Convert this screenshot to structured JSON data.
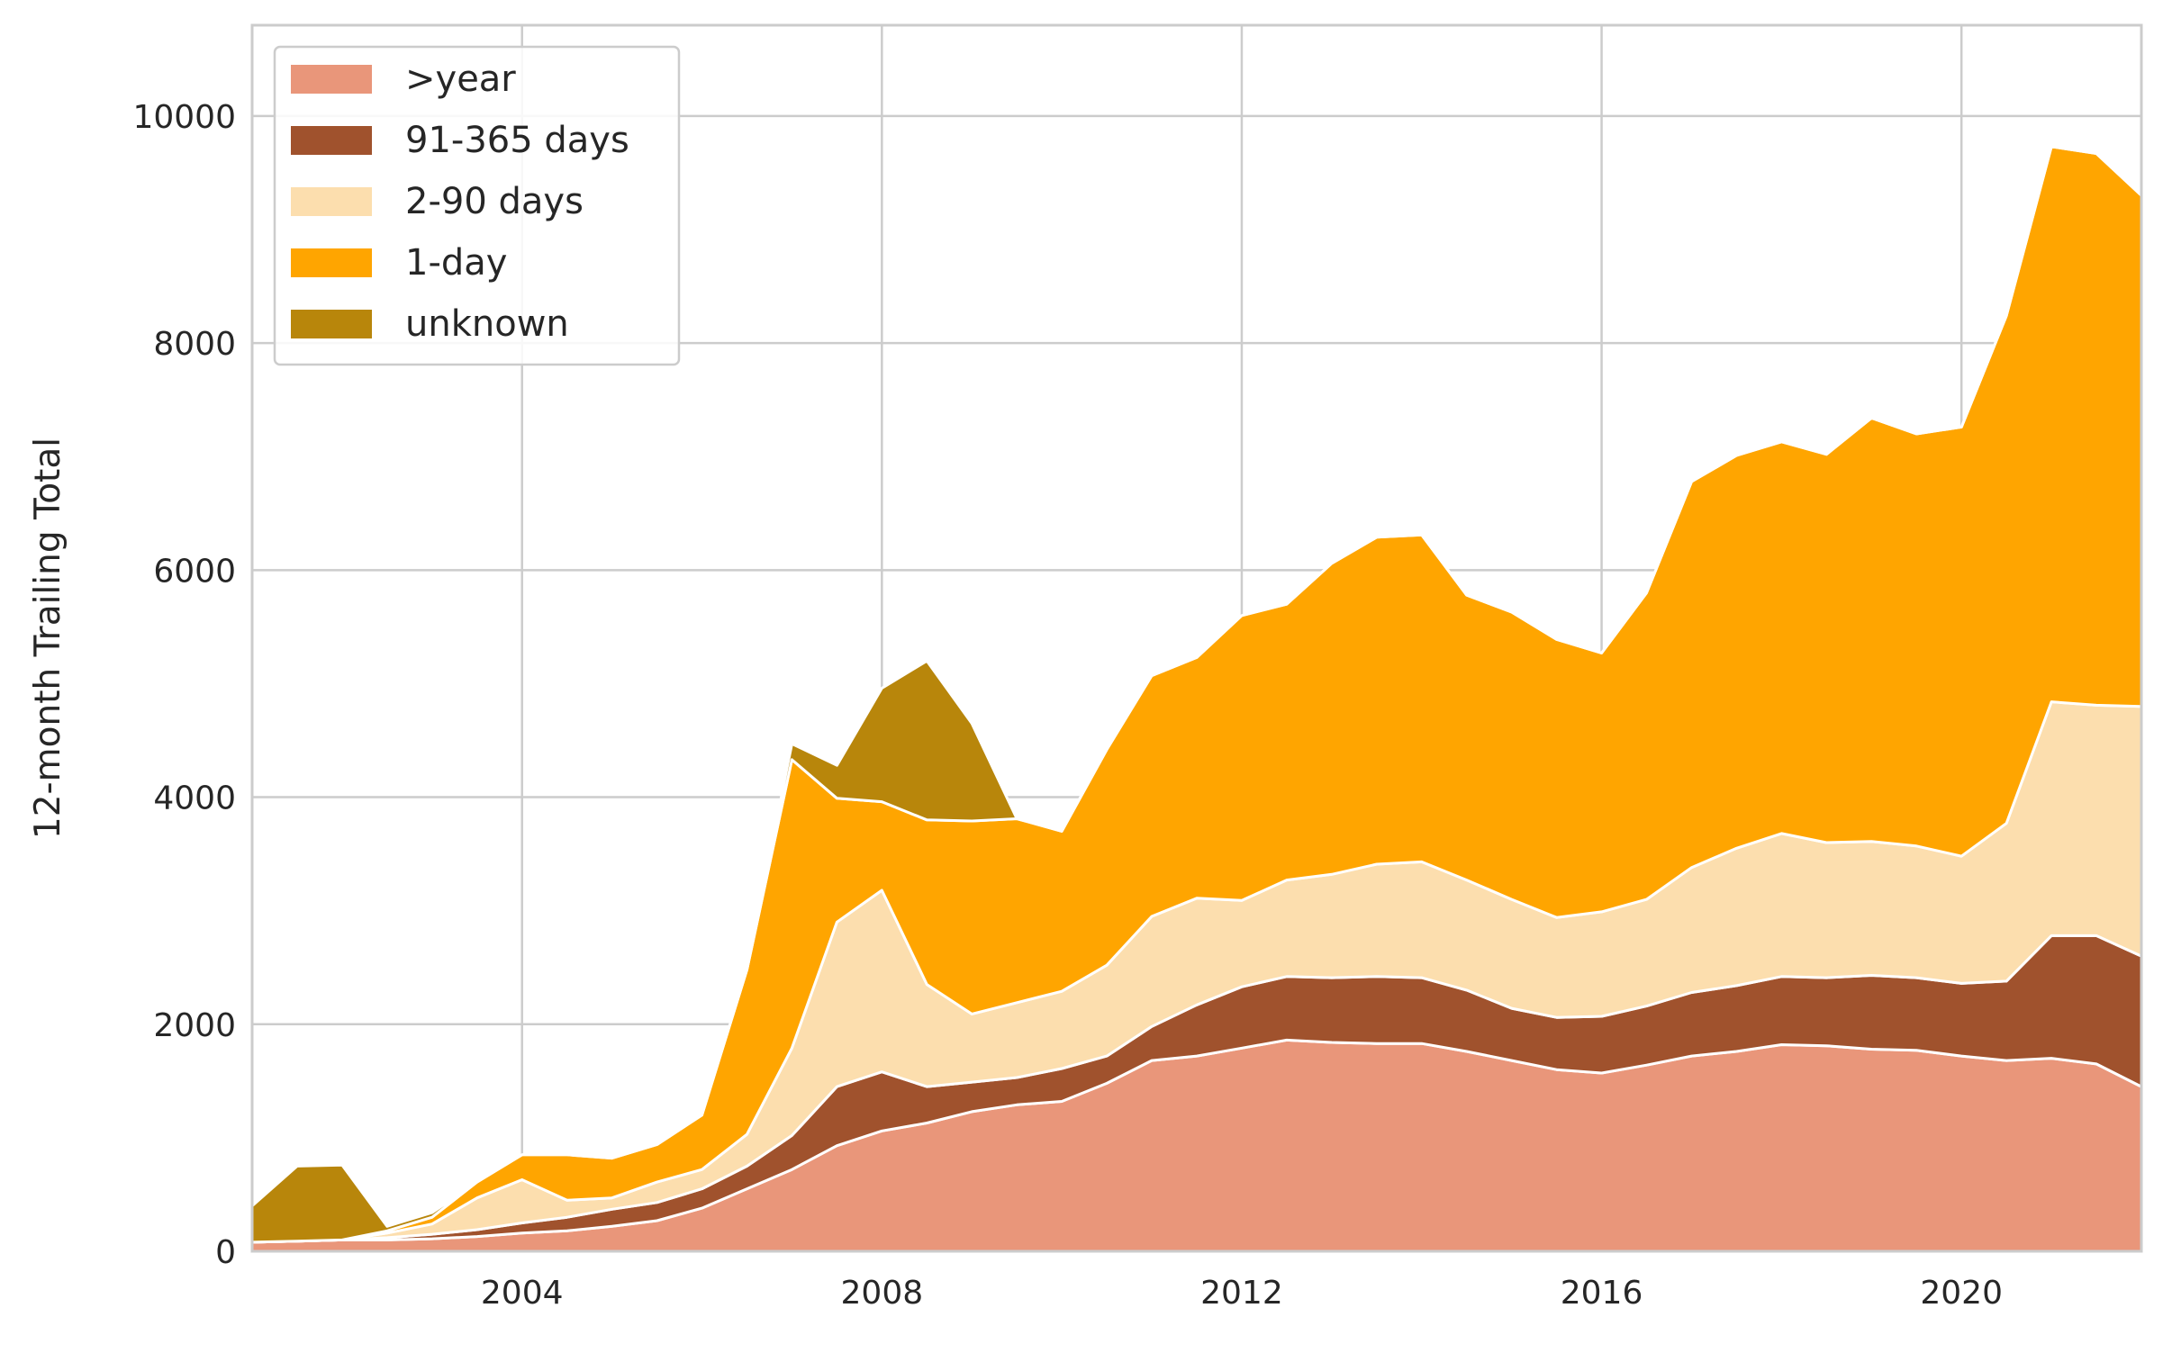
{
  "chart_data": {
    "type": "area",
    "stacked": true,
    "title": "",
    "xlabel": "",
    "ylabel": "12-month Trailing Total",
    "xlim": [
      2001.0,
      2022.0
    ],
    "ylim": [
      0,
      10800
    ],
    "x_ticks": [
      2004,
      2008,
      2012,
      2016,
      2020
    ],
    "y_ticks": [
      0,
      2000,
      4000,
      6000,
      8000,
      10000
    ],
    "grid": true,
    "legend_position": "top-left",
    "x": [
      2001.0,
      2001.5,
      2002.0,
      2002.5,
      2003.0,
      2003.5,
      2004.0,
      2004.5,
      2005.0,
      2005.5,
      2006.0,
      2006.5,
      2007.0,
      2007.5,
      2008.0,
      2008.5,
      2009.0,
      2009.5,
      2010.0,
      2010.5,
      2011.0,
      2011.5,
      2012.0,
      2012.5,
      2013.0,
      2013.5,
      2014.0,
      2014.5,
      2015.0,
      2015.5,
      2016.0,
      2016.5,
      2017.0,
      2017.5,
      2018.0,
      2018.5,
      2019.0,
      2019.5,
      2020.0,
      2020.5,
      2021.0,
      2021.5,
      2022.0
    ],
    "series": [
      {
        "name": ">year",
        "color": "#e9967a",
        "values": [
          80,
          90,
          100,
          100,
          110,
          130,
          160,
          180,
          220,
          270,
          380,
          550,
          720,
          930,
          1060,
          1130,
          1230,
          1290,
          1320,
          1480,
          1680,
          1720,
          1790,
          1860,
          1840,
          1830,
          1830,
          1760,
          1680,
          1600,
          1570,
          1640,
          1720,
          1760,
          1820,
          1810,
          1780,
          1770,
          1720,
          1680,
          1700,
          1650,
          1450
        ]
      },
      {
        "name": "91-365 days",
        "color": "#a0522d",
        "values": [
          0,
          0,
          0,
          20,
          40,
          60,
          90,
          120,
          150,
          160,
          170,
          200,
          300,
          520,
          520,
          320,
          260,
          240,
          290,
          240,
          300,
          450,
          540,
          560,
          570,
          590,
          580,
          540,
          460,
          460,
          500,
          520,
          560,
          580,
          600,
          600,
          650,
          640,
          640,
          700,
          1080,
          1130,
          1150
        ]
      },
      {
        "name": "2-90 days",
        "color": "#fcdeae",
        "values": [
          0,
          0,
          0,
          40,
          90,
          280,
          380,
          150,
          100,
          180,
          170,
          280,
          770,
          1450,
          1600,
          900,
          600,
          660,
          680,
          800,
          970,
          940,
          760,
          850,
          910,
          990,
          1020,
          970,
          960,
          880,
          920,
          940,
          1100,
          1210,
          1260,
          1190,
          1180,
          1160,
          1120,
          1390,
          2060,
          2030,
          2200
        ]
      },
      {
        "name": "1-day",
        "color": "#ffa500",
        "values": [
          0,
          0,
          0,
          20,
          60,
          140,
          220,
          400,
          350,
          330,
          480,
          1450,
          2540,
          1090,
          780,
          1450,
          1700,
          1620,
          1410,
          1900,
          2120,
          2120,
          2510,
          2430,
          2740,
          2880,
          2880,
          2510,
          2530,
          2450,
          2280,
          2700,
          3400,
          3460,
          3450,
          3420,
          3730,
          3630,
          3780,
          4470,
          4890,
          4860,
          4500
        ]
      },
      {
        "name": "unknown",
        "color": "#b8860b",
        "values": [
          320,
          660,
          660,
          40,
          40,
          0,
          0,
          0,
          0,
          0,
          0,
          0,
          140,
          290,
          1000,
          1400,
          860,
          0,
          0,
          0,
          0,
          0,
          0,
          0,
          0,
          0,
          0,
          0,
          0,
          0,
          0,
          0,
          0,
          0,
          0,
          0,
          0,
          0,
          0,
          0,
          0,
          0,
          0
        ]
      }
    ]
  }
}
